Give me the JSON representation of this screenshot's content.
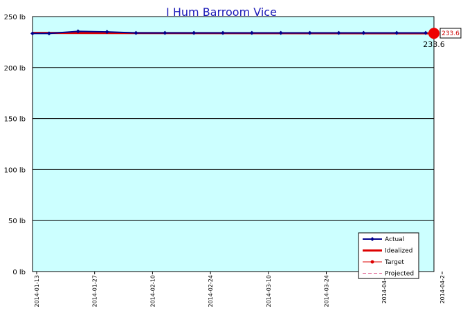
{
  "chart_data": {
    "type": "line",
    "title": "I Hum Barroom Vice",
    "y_unit": "lb",
    "ylim": [
      0,
      250
    ],
    "yticks": [
      0,
      50,
      100,
      150,
      200,
      250
    ],
    "ytick_labels": [
      "0 lb",
      "50 lb",
      "100 lb",
      "150 lb",
      "200 lb",
      "250 lb"
    ],
    "xlim": [
      "2014-01-12",
      "2014-04-19"
    ],
    "xticks": [
      "2014-01-13",
      "2014-01-27",
      "2014-02-10",
      "2014-02-24",
      "2014-03-10",
      "2014-03-24",
      "2014-04-07",
      "2014-04-21"
    ],
    "xtick_labels": [
      "2014-01-13",
      "2014-01-27",
      "2014-02-10",
      "2014-02-24",
      "2014-03-10",
      "2014-03-24",
      "2014-04-0",
      "2014-04-2"
    ],
    "grid": true,
    "legend_position": "bottom-right",
    "series": [
      {
        "name": "Actual",
        "color": "#00008b",
        "x": [
          "2014-01-12",
          "2014-01-16",
          "2014-01-23",
          "2014-01-30",
          "2014-02-06",
          "2014-02-13",
          "2014-02-20",
          "2014-02-27",
          "2014-03-06",
          "2014-03-13",
          "2014-03-20",
          "2014-03-27",
          "2014-04-02",
          "2014-04-10",
          "2014-04-17"
        ],
        "values": [
          233.5,
          233.5,
          235.5,
          235.0,
          234.0,
          234.0,
          234.0,
          234.0,
          234.0,
          234.0,
          234.0,
          234.0,
          234.0,
          234.0,
          234.0
        ]
      },
      {
        "name": "Idealized",
        "color": "#dd0000",
        "x": [
          "2014-01-12",
          "2014-04-19"
        ],
        "values": [
          234.0,
          233.6
        ]
      },
      {
        "name": "Target",
        "color": "#dd0000",
        "x": [],
        "values": []
      },
      {
        "name": "Projected",
        "color": "#e06090",
        "x": [],
        "values": []
      }
    ],
    "annotations": {
      "end_value": 233.6,
      "end_value_label": "233.6",
      "end_date": "2014-04-19",
      "callout_label": "233.6"
    }
  }
}
